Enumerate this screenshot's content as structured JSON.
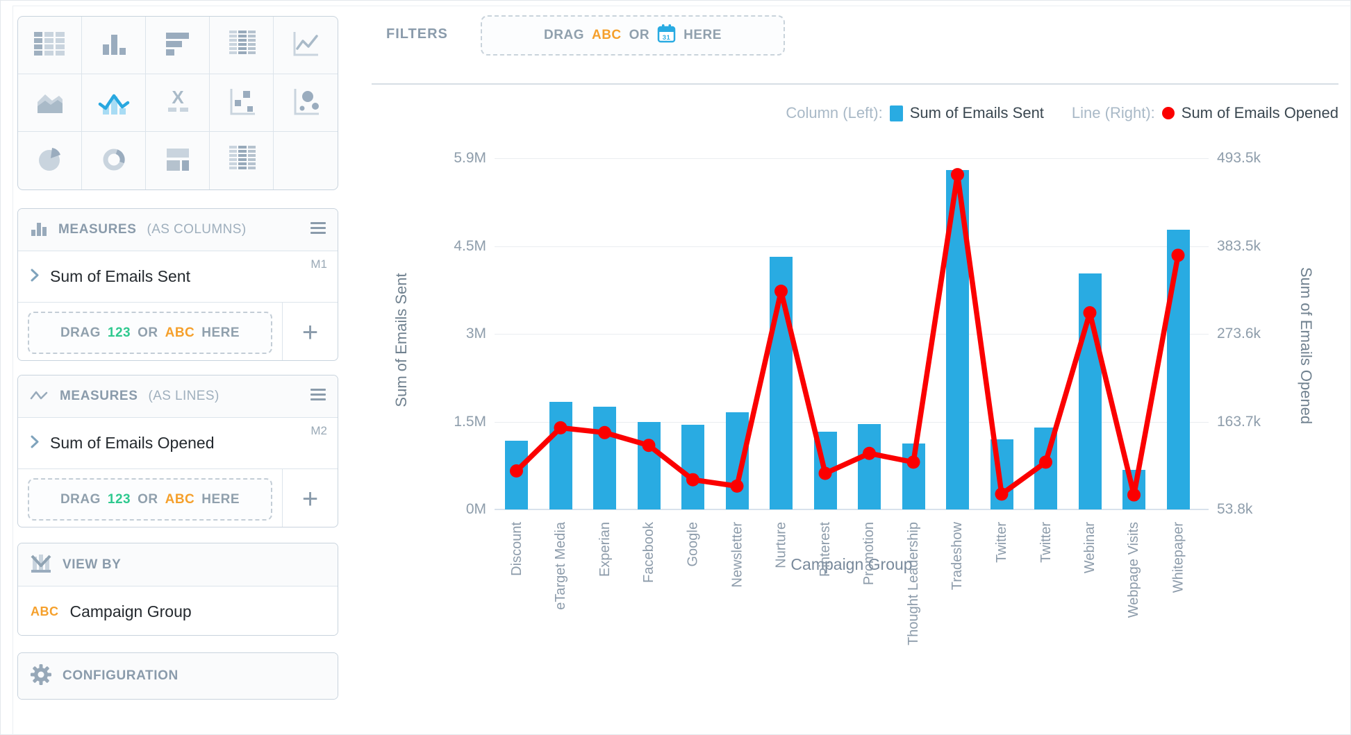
{
  "colors": {
    "bar_blue": "#29ABE2",
    "line_red": "#FB0000",
    "accent_green": "#2FC98F",
    "accent_orange": "#F5A02C",
    "muted_text": "#8C9BAA",
    "dark_text": "#24292E"
  },
  "chart_type_picker": {
    "tiles": [
      "table",
      "column-chart",
      "bar-chart",
      "pivot-table",
      "line-chart",
      "area-chart",
      "combo-chart",
      "x-label-chart",
      "scatter-plot",
      "bubble-chart",
      "pie-chart",
      "donut-chart",
      "summary-layout",
      "pivot-table-alt",
      "empty"
    ],
    "selected": "combo-chart"
  },
  "panels": {
    "measures_columns": {
      "title": "MEASURES",
      "subtitle": "(AS COLUMNS)",
      "items": [
        {
          "label": "Sum of Emails Sent",
          "badge": "M1"
        }
      ],
      "drop_zone": {
        "drag": "DRAG",
        "num": "123",
        "or": "OR",
        "abc": "ABC",
        "here": "HERE"
      },
      "add_label": "+"
    },
    "measures_lines": {
      "title": "MEASURES",
      "subtitle": "(AS LINES)",
      "items": [
        {
          "label": "Sum of Emails Opened",
          "badge": "M2"
        }
      ],
      "drop_zone": {
        "drag": "DRAG",
        "num": "123",
        "or": "OR",
        "abc": "ABC",
        "here": "HERE"
      },
      "add_label": "+"
    },
    "view_by": {
      "title": "VIEW BY",
      "items": [
        {
          "prefix": "ABC",
          "label": "Campaign Group"
        }
      ]
    },
    "configuration": {
      "title": "CONFIGURATION"
    }
  },
  "filters": {
    "label": "FILTERS",
    "drop_zone": {
      "drag": "DRAG",
      "abc": "ABC",
      "or": "OR",
      "calendar": "31",
      "here": "HERE"
    }
  },
  "legend": {
    "column_label": "Column (Left):",
    "column_series": "Sum of Emails Sent",
    "line_label": "Line (Right):",
    "line_series": "Sum of Emails Opened"
  },
  "chart_data": {
    "type": "combo-bar-line",
    "categories": [
      "Discount",
      "eTarget Media",
      "Experian",
      "Facebook",
      "Google",
      "Newsletter",
      "Nurture",
      "Pinterest",
      "Promotion",
      "Thought Leadership",
      "Tradeshow",
      "Twitter",
      "Twitter",
      "Webinar",
      "Webpage Visits",
      "Whitepaper"
    ],
    "series": [
      {
        "name": "Sum of Emails Sent",
        "type": "bar",
        "axis": "left",
        "unit": "M",
        "values": [
          1.16,
          1.81,
          1.72,
          1.47,
          1.42,
          1.63,
          4.24,
          1.31,
          1.44,
          1.11,
          5.7,
          1.18,
          1.38,
          3.96,
          0.66,
          4.7
        ]
      },
      {
        "name": "Sum of Emails Opened",
        "type": "line",
        "axis": "right",
        "unit": "k",
        "values": [
          102,
          156,
          150,
          134,
          91,
          83,
          327,
          99,
          124,
          113,
          473,
          73,
          113,
          300,
          72,
          372
        ]
      }
    ],
    "left_axis": {
      "title": "Sum of Emails Sent",
      "ticks_top_to_bottom": [
        "5.9M",
        "4.5M",
        "3M",
        "1.5M",
        "0M"
      ],
      "min": 0,
      "max": 5.9,
      "unit": "M"
    },
    "right_axis": {
      "title": "Sum of Emails Opened",
      "ticks_top_to_bottom": [
        "493.5k",
        "383.5k",
        "273.6k",
        "163.7k",
        "53.8k"
      ],
      "min": 53.8,
      "max": 493.5,
      "unit": "k"
    },
    "x_axis": {
      "title": "Campaign Group"
    },
    "grid": true,
    "legend_position": "top-right"
  }
}
